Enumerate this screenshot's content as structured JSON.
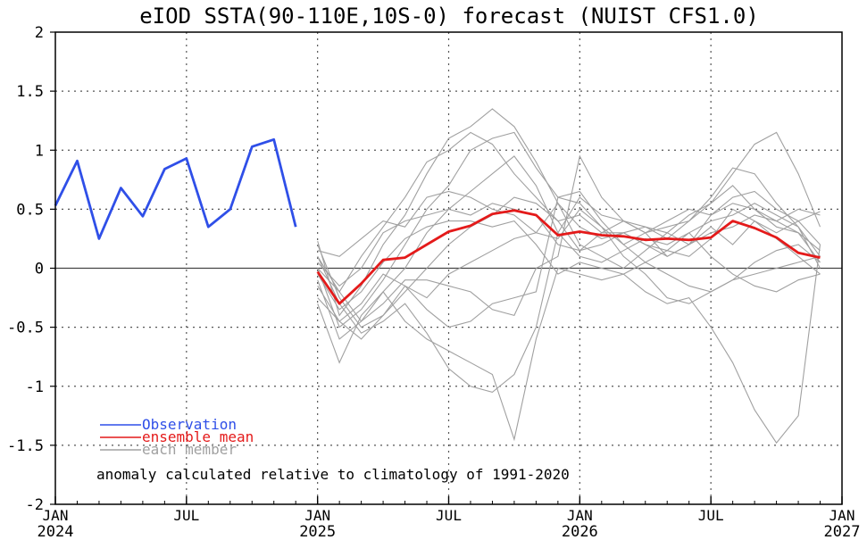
{
  "chart_data": {
    "type": "line",
    "title": "eIOD SSTA(90-110E,10S-0) forecast (NUIST CFS1.0)",
    "annotation": "anomaly calculated relative to climatology of 1991-2020",
    "ylim": [
      -2,
      2
    ],
    "yticks": [
      "-2",
      "-1.5",
      "-1",
      "-0.5",
      "0",
      "0.5",
      "1",
      "1.5",
      "2"
    ],
    "ytick_values": [
      -2,
      -1.5,
      -1,
      -0.5,
      0,
      0.5,
      1,
      1.5,
      2
    ],
    "xlim": [
      "2024-01",
      "2027-01"
    ],
    "xticks": [
      {
        "month": "JAN",
        "year": "2024",
        "date": "2024-01"
      },
      {
        "month": "JUL",
        "year": "",
        "date": "2024-07"
      },
      {
        "month": "JAN",
        "year": "2025",
        "date": "2025-01"
      },
      {
        "month": "JUL",
        "year": "",
        "date": "2025-07"
      },
      {
        "month": "JAN",
        "year": "2026",
        "date": "2026-01"
      },
      {
        "month": "JUL",
        "year": "",
        "date": "2026-07"
      },
      {
        "month": "JAN",
        "year": "2027",
        "date": "2027-01"
      }
    ],
    "grid": true,
    "legend": {
      "placement": "bottom-left",
      "entries": [
        {
          "label": "Observation",
          "color": "#2F4FE8"
        },
        {
          "label": "ensemble mean",
          "color": "#E41A1A"
        },
        {
          "label": "each member",
          "color": "#A0A0A0"
        }
      ]
    },
    "series": [
      {
        "name": "Observation",
        "color": "#2F4FE8",
        "x": [
          "2024-01",
          "2024-02",
          "2024-03",
          "2024-04",
          "2024-05",
          "2024-06",
          "2024-07",
          "2024-08",
          "2024-09",
          "2024-10",
          "2024-11",
          "2024-12"
        ],
        "values": [
          0.53,
          0.91,
          0.25,
          0.68,
          0.44,
          0.84,
          0.93,
          0.35,
          0.5,
          1.03,
          1.09,
          0.35
        ]
      },
      {
        "name": "ensemble mean",
        "color": "#E41A1A",
        "x": [
          "2025-01",
          "2025-02",
          "2025-03",
          "2025-04",
          "2025-05",
          "2025-06",
          "2025-07",
          "2025-08",
          "2025-09",
          "2025-10",
          "2025-11",
          "2025-12",
          "2026-01",
          "2026-02",
          "2026-03",
          "2026-04",
          "2026-05",
          "2026-06",
          "2026-07",
          "2026-08",
          "2026-09",
          "2026-10",
          "2026-11",
          "2026-12"
        ],
        "values": [
          -0.03,
          -0.3,
          -0.13,
          0.07,
          0.09,
          0.2,
          0.31,
          0.36,
          0.46,
          0.49,
          0.45,
          0.28,
          0.31,
          0.28,
          0.27,
          0.24,
          0.25,
          0.24,
          0.26,
          0.4,
          0.34,
          0.26,
          0.13,
          0.09
        ]
      }
    ],
    "members": {
      "color": "#A0A0A0",
      "x": [
        "2025-01",
        "2025-02",
        "2025-03",
        "2025-04",
        "2025-05",
        "2025-06",
        "2025-07",
        "2025-08",
        "2025-09",
        "2025-10",
        "2025-11",
        "2025-12",
        "2026-01",
        "2026-02",
        "2026-03",
        "2026-04",
        "2026-05",
        "2026-06",
        "2026-07",
        "2026-08",
        "2026-09",
        "2026-10",
        "2026-11",
        "2026-12"
      ],
      "values": [
        [
          0.23,
          -0.4,
          -0.15,
          0.2,
          0.45,
          0.8,
          1.1,
          1.2,
          1.35,
          1.2,
          0.9,
          0.55,
          0.2,
          0.1,
          0.0,
          0.15,
          0.3,
          0.45,
          0.55,
          0.7,
          0.5,
          0.4,
          0.3,
          0.05
        ],
        [
          0.1,
          -0.2,
          0.1,
          0.35,
          0.6,
          0.9,
          1.0,
          1.15,
          1.05,
          0.8,
          0.6,
          0.4,
          0.15,
          0.2,
          0.3,
          0.35,
          0.25,
          0.4,
          0.6,
          0.85,
          0.8,
          0.55,
          0.35,
          0.1
        ],
        [
          0.0,
          -0.5,
          -0.35,
          -0.1,
          0.2,
          0.5,
          0.7,
          1.0,
          1.1,
          1.15,
          0.85,
          0.6,
          0.55,
          0.35,
          0.2,
          0.3,
          0.4,
          0.5,
          0.45,
          0.6,
          0.65,
          0.5,
          0.4,
          0.2
        ],
        [
          -0.1,
          -0.6,
          -0.45,
          -0.2,
          0.0,
          0.3,
          0.5,
          0.65,
          0.8,
          0.95,
          0.7,
          0.3,
          0.1,
          0.05,
          0.15,
          0.25,
          0.2,
          0.3,
          0.4,
          0.45,
          0.55,
          0.45,
          0.35,
          0.0
        ],
        [
          -0.25,
          -0.45,
          -0.6,
          -0.4,
          -0.2,
          0.0,
          0.2,
          0.35,
          0.45,
          0.6,
          0.55,
          0.4,
          0.45,
          0.3,
          0.3,
          0.2,
          0.1,
          0.2,
          0.45,
          0.55,
          0.5,
          0.35,
          0.3,
          0.15
        ],
        [
          0.05,
          -0.15,
          0.0,
          0.3,
          0.4,
          0.45,
          0.5,
          0.45,
          0.55,
          0.5,
          0.45,
          0.2,
          0.15,
          0.3,
          0.4,
          0.35,
          0.3,
          0.2,
          0.3,
          0.35,
          0.45,
          0.4,
          0.5,
          0.45
        ],
        [
          -0.3,
          -0.8,
          -0.4,
          -0.2,
          -0.45,
          -0.6,
          -0.7,
          -0.8,
          -0.9,
          -1.45,
          -0.6,
          0.0,
          -0.05,
          -0.1,
          -0.05,
          -0.2,
          -0.3,
          -0.25,
          -0.5,
          -0.8,
          -1.2,
          -1.48,
          -1.25,
          0.2
        ],
        [
          0.2,
          -0.25,
          -0.5,
          -0.4,
          -0.15,
          -0.35,
          -0.5,
          -0.45,
          -0.3,
          -0.25,
          -0.2,
          0.6,
          0.65,
          0.4,
          0.2,
          0.05,
          -0.05,
          -0.15,
          -0.2,
          -0.1,
          0.05,
          0.15,
          0.2,
          0.05
        ],
        [
          0.1,
          -0.3,
          -0.55,
          -0.45,
          -0.3,
          -0.55,
          -0.85,
          -1.0,
          -1.05,
          -0.9,
          -0.5,
          0.3,
          0.6,
          0.45,
          0.4,
          0.3,
          0.35,
          0.4,
          0.55,
          0.8,
          1.05,
          1.15,
          0.8,
          0.35
        ],
        [
          -0.05,
          -0.35,
          -0.2,
          0.05,
          0.25,
          0.35,
          0.4,
          0.4,
          0.35,
          0.4,
          0.2,
          -0.05,
          0.05,
          0.0,
          -0.05,
          0.05,
          0.15,
          0.3,
          0.1,
          -0.05,
          -0.15,
          -0.2,
          -0.1,
          -0.05
        ],
        [
          0.15,
          0.1,
          0.25,
          0.4,
          0.35,
          0.6,
          0.65,
          0.6,
          0.5,
          0.45,
          0.3,
          0.25,
          0.5,
          0.35,
          0.1,
          -0.05,
          -0.25,
          -0.3,
          -0.2,
          -0.1,
          -0.05,
          0.0,
          0.05,
          0.1
        ],
        [
          -0.15,
          -0.45,
          -0.3,
          -0.05,
          -0.15,
          -0.25,
          -0.05,
          0.05,
          0.15,
          0.25,
          0.3,
          0.55,
          0.35,
          0.25,
          0.3,
          0.2,
          0.15,
          0.1,
          0.25,
          0.5,
          0.4,
          0.25,
          0.1,
          -0.05
        ],
        [
          0.0,
          -0.2,
          -0.45,
          -0.3,
          -0.1,
          -0.1,
          -0.15,
          -0.2,
          -0.35,
          -0.4,
          0.0,
          0.1,
          0.95,
          0.6,
          0.4,
          0.3,
          0.1,
          0.2,
          0.35,
          0.2,
          0.4,
          0.3,
          0.4,
          0.48
        ]
      ]
    }
  }
}
